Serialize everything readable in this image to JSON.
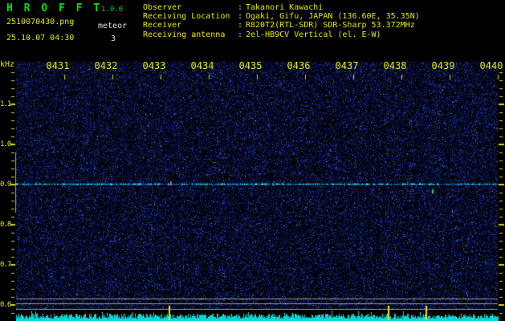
{
  "header": {
    "app_title": "H R O F F T",
    "version": "1.0.0",
    "filename": "2510070430.png",
    "mode": "meteor",
    "datetime": "25.10.07 04:30",
    "echo_count": "3",
    "separator": ":",
    "info_rows": [
      {
        "label": "Observer",
        "value": "Takanori Kawachi"
      },
      {
        "label": "Receiving Location",
        "value": "Ogaki, Gifu, JAPAN (136.60E, 35.35N)"
      },
      {
        "label": "Receiver",
        "value": "R820T2(RTL-SDR) SDR-Sharp 53.372MHz"
      },
      {
        "label": "Receiving antenna",
        "value": "2el-HB9CV Vertical (el. E-W)"
      }
    ]
  },
  "axes": {
    "freq_unit": "kHz",
    "freq_tick_labels": [
      "1.1",
      "1.0",
      "0.9",
      "0.8",
      "0.7",
      "0.6"
    ],
    "time_tick_labels": [
      "0431",
      "0432",
      "0433",
      "0434",
      "0435",
      "0436",
      "0437",
      "0438",
      "0439",
      "0440"
    ]
  },
  "chart_data": {
    "type": "heatmap",
    "title": "HROFFT 1.0.0 radio meteor echo spectrogram (10-minute waterfall)",
    "x_axis": {
      "unit": "time HHMM (JST)",
      "start": "0430",
      "end": "0440",
      "duration_min": 10,
      "tick_labels": [
        "0431",
        "0432",
        "0433",
        "0434",
        "0435",
        "0436",
        "0437",
        "0438",
        "0439",
        "0440"
      ]
    },
    "y_axis": {
      "unit": "kHz",
      "ticks": [
        1.1,
        1.0,
        0.9,
        0.8,
        0.7,
        0.6
      ],
      "range": [
        0.56,
        1.21
      ],
      "minor_step": 0.02
    },
    "carrier_line_khz": 0.9,
    "detection_band_khz": [
      0.83,
      0.98
    ],
    "level_reference_lines_khz": [
      0.616,
      0.604,
      0.59
    ],
    "meteor_echo_count": 3,
    "meteor_markers_min": [
      3.17,
      7.72,
      8.5
    ],
    "echo_events": [
      {
        "t_min": 3.2,
        "khz": 0.904,
        "color": "#e05878"
      },
      {
        "t_min": 8.63,
        "khz": 0.885,
        "color": "#30d030"
      }
    ],
    "background": "dark blue noise speckle on black",
    "signal_meter": "cyan bargraph strip along bottom edge",
    "legend_position": "none",
    "grid": false
  },
  "colors": {
    "background": "#000000",
    "text_yellow": "#e8e800",
    "text_green": "#00dd00",
    "text_white": "#e0e0e0",
    "axis_tick": "#d8d800",
    "noise_blue": "#2030a0",
    "carrier_cyan": "#30c8ff",
    "meter_cyan": "#00d8d8",
    "level_line_gray": "#9a9a9a",
    "band_marker_gray": "#a0a0a0",
    "marker_yellow": "#e8e800",
    "echo_pink": "#e05878",
    "echo_green": "#30d030"
  }
}
